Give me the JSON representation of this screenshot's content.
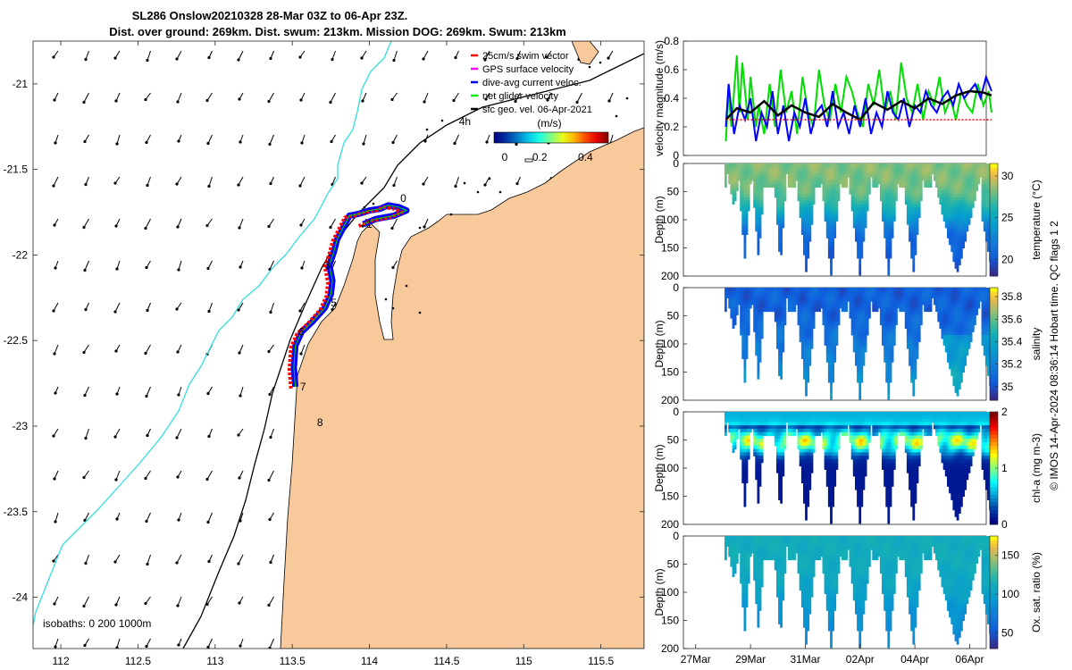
{
  "chart_data": [
    {
      "type": "map",
      "title_line1": "SL286 Onslow20210328 28-Mar 03Z to 06-Apr 23Z.",
      "title_line2": "Dist. over ground: 269km. Dist. swum: 213km. Mission DOG: 269km. Swum: 213km",
      "x_ticks": [
        "112",
        "112.5",
        "113",
        "113.5",
        "114",
        "114.5",
        "115",
        "115.5"
      ],
      "x_values": [
        112,
        112.5,
        113,
        113.5,
        114,
        114.5,
        115,
        115.5
      ],
      "xlim": [
        111.82,
        115.78
      ],
      "y_ticks": [
        "-21",
        "-21.5",
        "-22",
        "-22.5",
        "-23",
        "-23.5",
        "-24"
      ],
      "y_values": [
        -21,
        -21.5,
        -22,
        -22.5,
        -23,
        -23.5,
        -24
      ],
      "ylim": [
        -24.3,
        -20.75
      ],
      "legend": [
        {
          "label": "25cm/s swim vector",
          "color": "#ff0000"
        },
        {
          "label": "GPS surface velocity",
          "color": "#ff00ff"
        },
        {
          "label": "dive-avg current veloc.",
          "color": "#0000ff"
        },
        {
          "label": "net glider velocity",
          "color": "#00ee00"
        },
        {
          "label": "sfc geo. vel. 06-Apr-2021",
          "color": "#000000"
        }
      ],
      "colorbar": {
        "title": "(m/s)",
        "ticks": [
          "0",
          "0.2",
          "0.4"
        ],
        "range": [
          0,
          0.5
        ]
      },
      "isobaths_label": "isobaths: 0   200  1000m",
      "day_labels": [
        {
          "text": "4h",
          "lon": 114.58,
          "lat": -21.24
        },
        {
          "text": "0",
          "lon": 114.2,
          "lat": -21.69
        },
        {
          "text": "1",
          "lon": 113.98,
          "lat": -21.84
        },
        {
          "text": "3",
          "lon": 113.71,
          "lat": -22.08
        },
        {
          "text": "5",
          "lon": 113.75,
          "lat": -22.3
        },
        {
          "text": "6",
          "lon": 113.54,
          "lat": -22.47
        },
        {
          "text": "7",
          "lon": 113.55,
          "lat": -22.79
        },
        {
          "text": "8",
          "lon": 113.66,
          "lat": -23.0
        }
      ],
      "track": [
        [
          113.52,
          -22.77
        ],
        [
          113.51,
          -22.66
        ],
        [
          113.52,
          -22.53
        ],
        [
          113.56,
          -22.45
        ],
        [
          113.63,
          -22.39
        ],
        [
          113.71,
          -22.31
        ],
        [
          113.75,
          -22.23
        ],
        [
          113.76,
          -22.15
        ],
        [
          113.74,
          -22.06
        ],
        [
          113.77,
          -21.98
        ],
        [
          113.79,
          -21.91
        ],
        [
          113.83,
          -21.84
        ],
        [
          113.87,
          -21.77
        ],
        [
          113.93,
          -21.76
        ],
        [
          114.0,
          -21.74
        ],
        [
          114.07,
          -21.73
        ],
        [
          114.12,
          -21.71
        ],
        [
          114.19,
          -21.72
        ],
        [
          114.24,
          -21.74
        ],
        [
          114.16,
          -21.77
        ],
        [
          114.04,
          -21.79
        ],
        [
          113.96,
          -21.82
        ]
      ]
    },
    {
      "type": "line",
      "ylabel": "velocity magnitude (m/s)",
      "ylim": [
        0,
        0.8
      ],
      "y_ticks": [
        "0",
        "0.2",
        "0.4",
        "0.6",
        "0.8"
      ],
      "y_values": [
        0,
        0.2,
        0.4,
        0.6,
        0.8
      ],
      "x_range_days": [
        0,
        11
      ],
      "series": [
        {
          "name": "net glider velocity",
          "color": "#00dd00",
          "x": [
            1.1,
            1.2,
            1.3,
            1.5,
            1.6,
            1.7,
            1.9,
            2.0,
            2.2,
            2.3,
            2.5,
            2.7,
            2.9,
            3.1,
            3.3,
            3.5,
            3.7,
            3.9,
            4.1,
            4.3,
            4.5,
            4.7,
            4.9,
            5.1,
            5.3,
            5.5,
            5.7,
            5.9,
            6.1,
            6.3,
            6.5,
            6.7,
            6.9,
            7.1,
            7.3,
            7.5,
            7.7,
            7.9,
            8.1,
            8.3,
            8.5,
            8.7,
            8.9,
            9.1,
            9.3,
            9.5,
            9.7,
            9.9,
            10.1,
            10.3,
            10.5,
            10.7,
            10.8
          ],
          "y": [
            0.1,
            0.45,
            0.2,
            0.7,
            0.3,
            0.65,
            0.25,
            0.55,
            0.2,
            0.35,
            0.15,
            0.5,
            0.2,
            0.6,
            0.3,
            0.45,
            0.15,
            0.55,
            0.3,
            0.2,
            0.6,
            0.35,
            0.25,
            0.5,
            0.3,
            0.55,
            0.45,
            0.3,
            0.2,
            0.5,
            0.35,
            0.6,
            0.3,
            0.45,
            0.25,
            0.65,
            0.4,
            0.3,
            0.5,
            0.25,
            0.45,
            0.35,
            0.55,
            0.3,
            0.4,
            0.25,
            0.45,
            0.35,
            0.3,
            0.5,
            0.35,
            0.45,
            0.3
          ]
        },
        {
          "name": "dive-avg current veloc.",
          "color": "#0000ff",
          "x": [
            1.1,
            1.2,
            1.4,
            1.6,
            1.8,
            2.0,
            2.2,
            2.4,
            2.6,
            2.8,
            3.0,
            3.2,
            3.4,
            3.6,
            3.8,
            4.0,
            4.2,
            4.4,
            4.6,
            4.8,
            5.0,
            5.2,
            5.4,
            5.6,
            5.8,
            6.0,
            6.2,
            6.4,
            6.6,
            6.8,
            7.0,
            7.2,
            7.4,
            7.6,
            7.8,
            8.0,
            8.2,
            8.4,
            8.6,
            8.8,
            9.0,
            9.2,
            9.4,
            9.6,
            9.8,
            10.0,
            10.2,
            10.4,
            10.6,
            10.8
          ],
          "y": [
            0.2,
            0.5,
            0.15,
            0.35,
            0.25,
            0.4,
            0.1,
            0.3,
            0.2,
            0.45,
            0.15,
            0.35,
            0.1,
            0.3,
            0.2,
            0.4,
            0.15,
            0.3,
            0.35,
            0.2,
            0.45,
            0.2,
            0.3,
            0.15,
            0.35,
            0.2,
            0.4,
            0.15,
            0.3,
            0.2,
            0.45,
            0.3,
            0.25,
            0.4,
            0.2,
            0.35,
            0.3,
            0.45,
            0.35,
            0.3,
            0.4,
            0.45,
            0.35,
            0.5,
            0.4,
            0.45,
            0.5,
            0.4,
            0.55,
            0.45
          ]
        },
        {
          "name": "sfc geo. vel.",
          "color": "#000000",
          "x": [
            1.1,
            1.5,
            2.0,
            2.5,
            3.0,
            3.5,
            4.0,
            4.5,
            5.0,
            5.5,
            6.0,
            6.5,
            7.0,
            7.5,
            8.0,
            8.5,
            9.0,
            9.5,
            10.0,
            10.5,
            10.8
          ],
          "y": [
            0.25,
            0.33,
            0.3,
            0.38,
            0.28,
            0.35,
            0.3,
            0.27,
            0.36,
            0.3,
            0.25,
            0.37,
            0.32,
            0.38,
            0.33,
            0.4,
            0.36,
            0.42,
            0.45,
            0.44,
            0.42
          ]
        },
        {
          "name": "25cm/s swim vector",
          "color": "#ff0000",
          "x": [
            1.1,
            10.8
          ],
          "y": [
            0.25,
            0.25
          ]
        }
      ]
    },
    {
      "type": "heatmap",
      "variable": "temperature",
      "cbar_label": "temperature (°C)",
      "cbar_ticks": [
        "20",
        "25",
        "30"
      ],
      "cbar_values": [
        20,
        25,
        30
      ],
      "cbar_range": [
        18,
        31.5
      ],
      "palette": "parula",
      "ylabel": "Depth (m)",
      "y_ticks": [
        "0",
        "50",
        "100",
        "150",
        "200"
      ],
      "y_values": [
        0,
        50,
        100,
        150,
        200
      ],
      "surface": 28.5,
      "bottom": 20,
      "thermocline": 90
    },
    {
      "type": "heatmap",
      "variable": "salinity",
      "cbar_label": "salinity",
      "cbar_ticks": [
        "35",
        "35.2",
        "35.4",
        "35.6",
        "35.8"
      ],
      "cbar_values": [
        35,
        35.2,
        35.4,
        35.6,
        35.8
      ],
      "cbar_range": [
        34.88,
        35.88
      ],
      "palette": "parula",
      "ylabel": "Depth (m)",
      "y_ticks": [
        "0",
        "50",
        "100",
        "150",
        "200"
      ],
      "y_values": [
        0,
        50,
        100,
        150,
        200
      ],
      "surface": 35.15,
      "bottom": 35.25,
      "thermocline": 120
    },
    {
      "type": "heatmap",
      "variable": "chl-a",
      "cbar_label": "chl-a (mg m-3)",
      "cbar_ticks": [
        "0",
        "1",
        "2"
      ],
      "cbar_values": [
        0,
        1,
        2
      ],
      "cbar_range": [
        0,
        2
      ],
      "palette": "jet",
      "ylabel": "Depth (m)",
      "y_ticks": [
        "0",
        "50",
        "100",
        "150",
        "200"
      ],
      "y_values": [
        0,
        50,
        100,
        150,
        200
      ],
      "surface": 0.45,
      "bottom": 0.2,
      "peak_depth": 50
    },
    {
      "type": "heatmap",
      "variable": "oxygen",
      "cbar_label": "Ox. sat. ratio (%)",
      "cbar_ticks": [
        "50",
        "100",
        "150"
      ],
      "cbar_values": [
        50,
        100,
        150
      ],
      "cbar_range": [
        30,
        175
      ],
      "palette": "parula",
      "ylabel": "Depth (m)",
      "y_ticks": [
        "0",
        "50",
        "100",
        "150",
        "200"
      ],
      "y_values": [
        0,
        50,
        100,
        150,
        200
      ],
      "surface": 112,
      "bottom": 82,
      "thermocline": 110
    }
  ],
  "time_axis": {
    "labels": [
      "27Mar",
      "29Mar",
      "31Mar",
      "02Apr",
      "04Apr",
      "06Apr"
    ],
    "days": [
      0,
      2,
      4,
      6,
      8,
      10
    ]
  },
  "profile_dives": [
    {
      "start": 1.1,
      "bottom": 1.35,
      "depth": 75
    },
    {
      "start": 1.5,
      "bottom": 1.75,
      "depth": 165
    },
    {
      "start": 2.0,
      "bottom": 2.25,
      "depth": 165
    },
    {
      "start": 2.8,
      "bottom": 3.05,
      "depth": 180
    },
    {
      "start": 3.6,
      "bottom": 4.0,
      "depth": 195
    },
    {
      "start": 4.5,
      "bottom": 4.9,
      "depth": 195
    },
    {
      "start": 5.5,
      "bottom": 5.95,
      "depth": 195
    },
    {
      "start": 6.6,
      "bottom": 7.0,
      "depth": 195
    },
    {
      "start": 7.5,
      "bottom": 7.9,
      "depth": 195
    },
    {
      "start": 8.6,
      "bottom": 9.5,
      "depth": 195
    },
    {
      "start": 10.1,
      "bottom": 10.8,
      "depth": 195
    }
  ],
  "footer_text": "© IMOS 14-Apr-2024 08:36:14 Hobart time. QC flags 1  2",
  "colors": {
    "land": "#f8c99b",
    "coast": "#000000",
    "isobath_200": "#000000",
    "isobath_1000": "#33dddd",
    "glider_red": "#ff0000",
    "glider_blue": "#0000ff",
    "arrow": "#000000"
  }
}
